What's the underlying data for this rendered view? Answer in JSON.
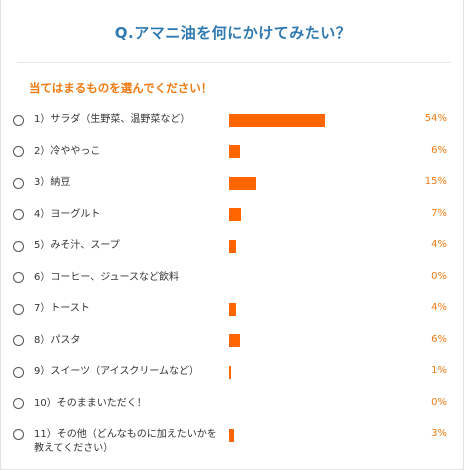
{
  "survey": {
    "title": "Q.アマニ油を何にかけてみたい？",
    "instruction": "当てはまるものを選んでください！",
    "bar_color": "#ff6600",
    "options": [
      {
        "label": "1）サラダ（生野菜、温野菜など）",
        "percent_label": "54%",
        "percent": 54
      },
      {
        "label": "2）冷ややっこ",
        "percent_label": "6%",
        "percent": 6
      },
      {
        "label": "3）納豆",
        "percent_label": "15%",
        "percent": 15
      },
      {
        "label": "4）ヨーグルト",
        "percent_label": "7%",
        "percent": 7
      },
      {
        "label": "5）みそ汁、スープ",
        "percent_label": "4%",
        "percent": 4
      },
      {
        "label": "6）コーヒー、ジュースなど飲料",
        "percent_label": "0%",
        "percent": 0
      },
      {
        "label": "7）トースト",
        "percent_label": "4%",
        "percent": 4
      },
      {
        "label": "8）パスタ",
        "percent_label": "6%",
        "percent": 6
      },
      {
        "label": "9）スイーツ（アイスクリームなど）",
        "percent_label": "1%",
        "percent": 1
      },
      {
        "label": "10）そのままいただく！",
        "percent_label": "0%",
        "percent": 0
      },
      {
        "label": "11）その他（どんなものに加えたいかを教えてください）",
        "percent_label": "3%",
        "percent": 3
      }
    ]
  }
}
